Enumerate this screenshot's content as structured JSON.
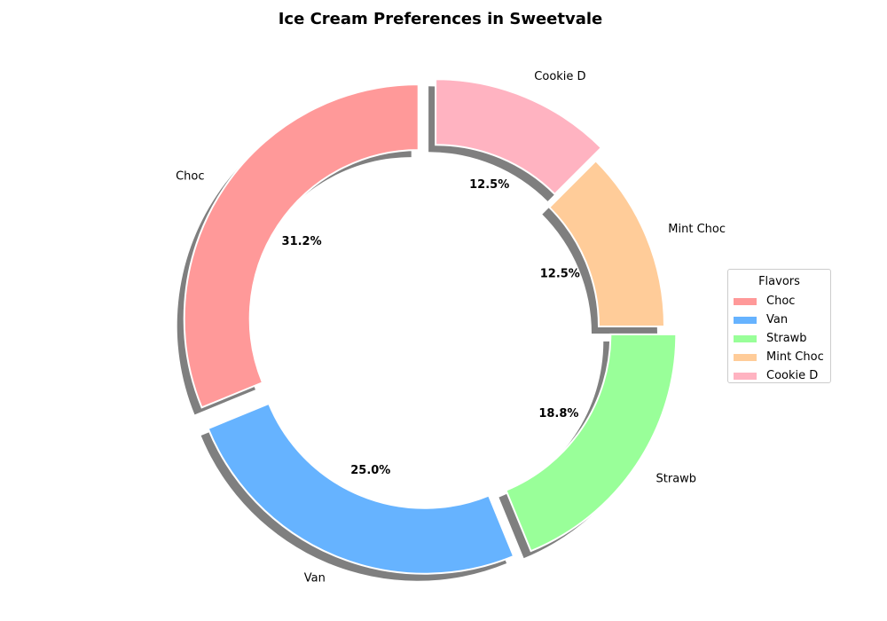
{
  "chart_data": {
    "type": "pie",
    "title": "Ice Cream Preferences in Sweetvale",
    "categories": [
      "Choc",
      "Van",
      "Strawb",
      "Mint Choc",
      "Cookie D"
    ],
    "values": [
      31.2,
      25.0,
      18.8,
      12.5,
      12.5
    ],
    "percent_labels": [
      "31.2%",
      "25.0%",
      "18.8%",
      "12.5%",
      "12.5%"
    ],
    "colors": [
      "#ff9999",
      "#66b3ff",
      "#99ff99",
      "#ffcc99",
      "#ffb3c1"
    ],
    "donut": true,
    "shadow": true,
    "exploded": [
      true,
      true,
      true,
      false,
      true
    ],
    "legend": {
      "title": "Flavors",
      "placement": "right"
    }
  }
}
